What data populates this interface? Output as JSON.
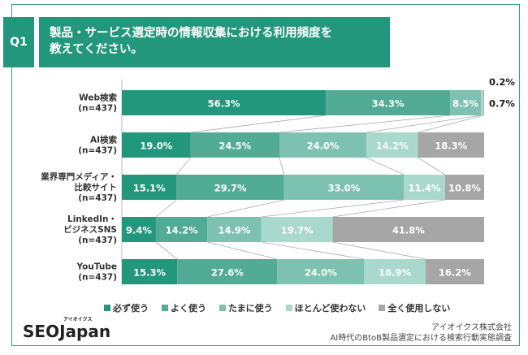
{
  "header": {
    "q_label": "Q1",
    "title_line1": "製品・サービス選定時の情報収集における利用頻度を",
    "title_line2": "教えてください。"
  },
  "chart_data": {
    "type": "bar",
    "orientation": "horizontal",
    "stacked": "100%",
    "categories": [
      [
        "Web検索",
        "(n=437)"
      ],
      [
        "AI検索",
        "(n=437)"
      ],
      [
        "業界専門メディア・",
        "比較サイト",
        "(n=437)"
      ],
      [
        "LinkedIn・",
        "ビジネスSNS",
        "(n=437)"
      ],
      [
        "YouTube",
        "(n=437)"
      ]
    ],
    "series": [
      {
        "name": "必ず使う",
        "color": "#23977c",
        "values": [
          56.3,
          19.0,
          15.1,
          9.4,
          15.3
        ]
      },
      {
        "name": "よく使う",
        "color": "#52ab95",
        "values": [
          34.3,
          24.5,
          29.7,
          14.2,
          27.6
        ]
      },
      {
        "name": "たまに使う",
        "color": "#7dc2b0",
        "values": [
          8.5,
          24.0,
          33.0,
          14.9,
          24.0
        ]
      },
      {
        "name": "ほとんど使わない",
        "color": "#a9d9cc",
        "values": [
          0.7,
          14.2,
          11.4,
          19.7,
          16.9
        ]
      },
      {
        "name": "全く使用しない",
        "color": "#a6a6a6",
        "values": [
          0.2,
          18.3,
          10.8,
          41.8,
          16.2
        ]
      }
    ],
    "legend_position": "bottom"
  },
  "footer": {
    "logo": "SEOJapan",
    "logo_sub": "アイオイクス",
    "company": "アイオイクス株式会社",
    "survey": "AI時代のBtoB製品選定における検索行動実態調査"
  }
}
